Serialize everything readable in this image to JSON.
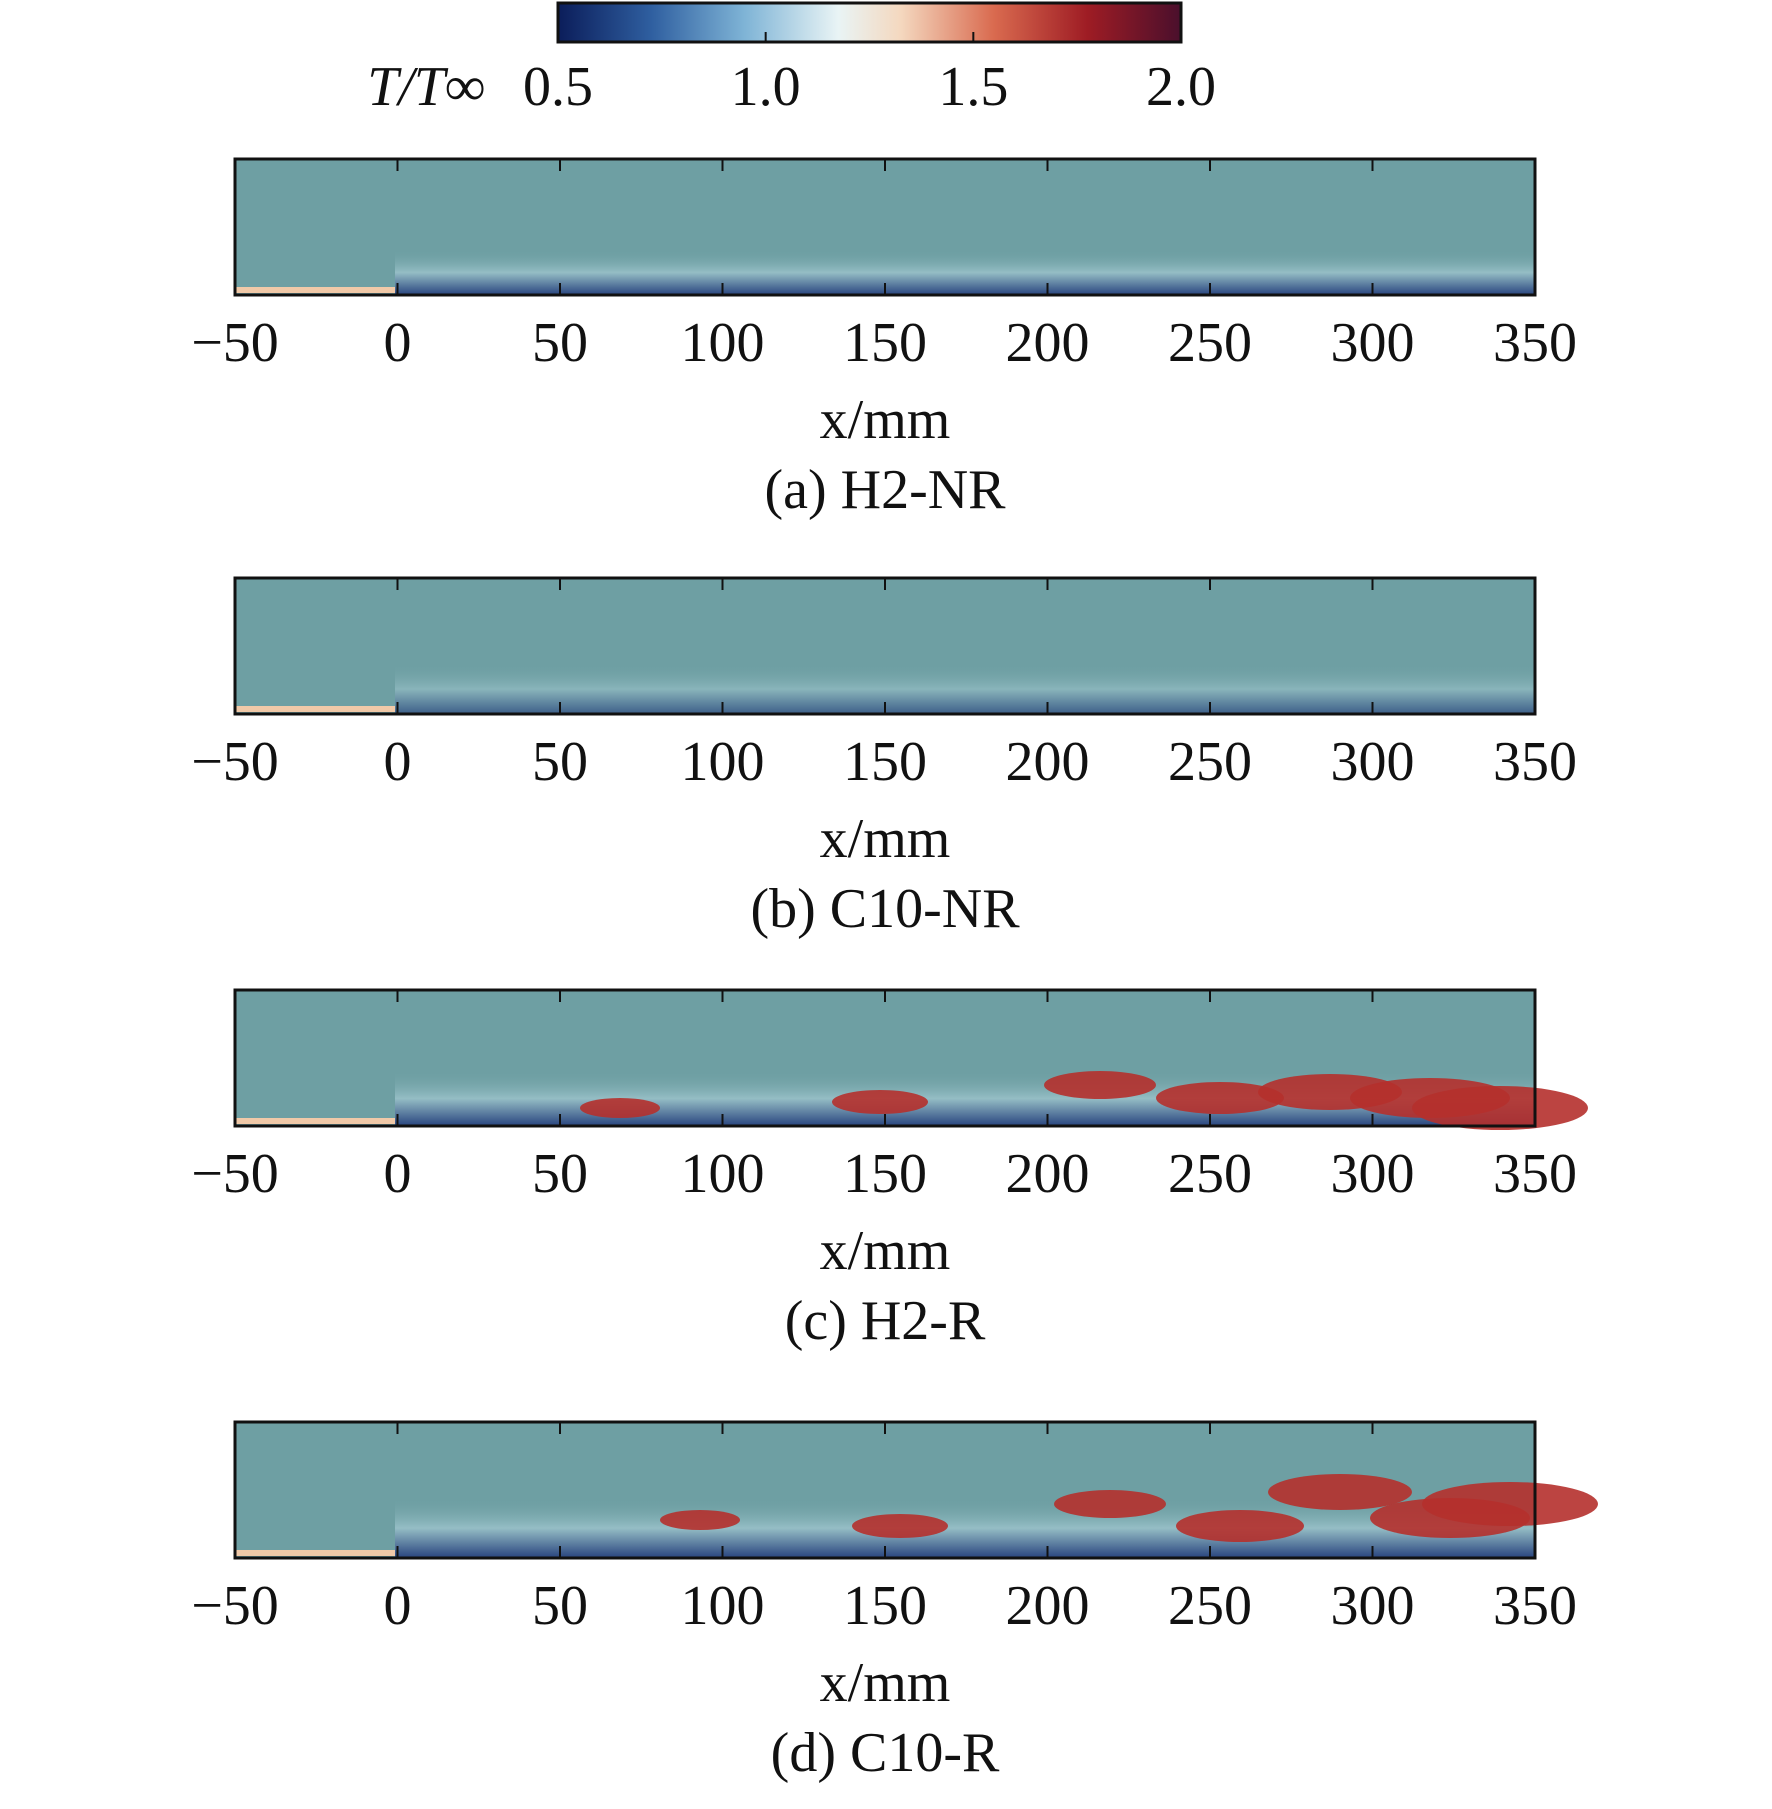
{
  "chart_data": [
    {
      "type": "colorbar",
      "label": "T/T∞",
      "lim": [
        0.5,
        2.0
      ],
      "ticks": [
        0.5,
        {
          "value": 1,
          "label": "1.0"
        },
        1.5,
        {
          "value": 2,
          "label": "2.0"
        }
      ]
    },
    {
      "type": "field",
      "caption": "(a) H2-NR",
      "xlabel": "x/mm",
      "xlim": [
        -50,
        350
      ],
      "xticks": [
        {
          "value": -50,
          "label": "−50"
        },
        0,
        50,
        100,
        150,
        200,
        250,
        300,
        350
      ]
    },
    {
      "type": "field",
      "caption": "(b) C10-NR",
      "xlabel": "x/mm",
      "xlim": [
        -50,
        350
      ],
      "xticks": [
        {
          "value": -50,
          "label": "−50"
        },
        0,
        50,
        100,
        150,
        200,
        250,
        300,
        350
      ]
    },
    {
      "type": "field",
      "caption": "(c) H2-R",
      "xlabel": "x/mm",
      "xlim": [
        -50,
        350
      ],
      "xticks": [
        {
          "value": -50,
          "label": "−50"
        },
        0,
        50,
        100,
        150,
        200,
        250,
        300,
        350
      ]
    },
    {
      "type": "field",
      "caption": "(d) C10-R",
      "xlabel": "x/mm",
      "xlim": [
        -50,
        350
      ],
      "xticks": [
        {
          "value": -50,
          "label": "−50"
        },
        0,
        50,
        100,
        150,
        200,
        250,
        300,
        350
      ]
    }
  ]
}
